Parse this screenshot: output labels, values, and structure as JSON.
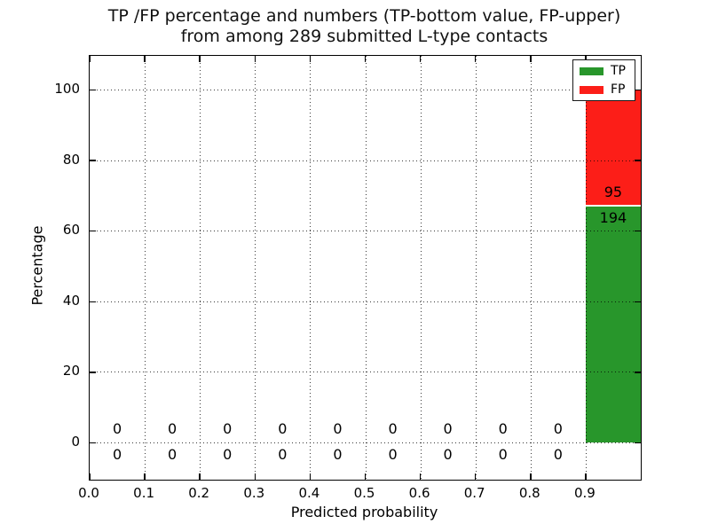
{
  "colors": {
    "tp_green": "#28962b",
    "fp_red": "#fc1e18",
    "grid": "#000000",
    "text": "#000000",
    "background": "#ffffff",
    "bar_separator": "#f2fff2"
  },
  "chart_data": {
    "type": "bar",
    "stacked": true,
    "title": "TP /FP percentage and numbers (TP-bottom value, FP-upper)\nfrom among 289 submitted L-type contacts",
    "title_line1": "TP /FP percentage and numbers (TP-bottom value, FP-upper)",
    "title_line2": "from among 289 submitted L-type contacts",
    "xlabel": "Predicted probability",
    "ylabel": "Percentage",
    "total_submitted": 289,
    "bin_width": 0.1,
    "bin_centers": [
      0.05,
      0.15,
      0.25,
      0.35,
      0.45,
      0.55,
      0.65,
      0.75,
      0.85,
      0.95
    ],
    "categories": [
      "0.0-0.1",
      "0.1-0.2",
      "0.2-0.3",
      "0.3-0.4",
      "0.4-0.5",
      "0.5-0.6",
      "0.6-0.7",
      "0.7-0.8",
      "0.8-0.9",
      "0.9-1.0"
    ],
    "series": [
      {
        "name": "TP",
        "color": "#28962b",
        "counts": [
          0,
          0,
          0,
          0,
          0,
          0,
          0,
          0,
          0,
          194
        ],
        "percent": [
          0,
          0,
          0,
          0,
          0,
          0,
          0,
          0,
          0,
          67.1
        ]
      },
      {
        "name": "FP",
        "color": "#fc1e18",
        "counts": [
          0,
          0,
          0,
          0,
          0,
          0,
          0,
          0,
          0,
          95
        ],
        "percent": [
          0,
          0,
          0,
          0,
          0,
          0,
          0,
          0,
          0,
          32.9
        ]
      }
    ],
    "annotation_note": "TP count shown below segment boundary, FP count shown above it",
    "xtick_labels": [
      "0.0",
      "0.1",
      "0.2",
      "0.3",
      "0.4",
      "0.5",
      "0.6",
      "0.7",
      "0.8",
      "0.9"
    ],
    "xtick_values": [
      0.0,
      0.1,
      0.2,
      0.3,
      0.4,
      0.5,
      0.6,
      0.7,
      0.8,
      0.9
    ],
    "ytick_labels": [
      "0",
      "20",
      "40",
      "60",
      "80",
      "100"
    ],
    "ytick_values": [
      0,
      20,
      40,
      60,
      80,
      100
    ],
    "xlim": [
      0.0,
      1.0
    ],
    "ylim": [
      -10.5,
      109.5
    ],
    "grid": "dotted",
    "legend": {
      "position": "upper right",
      "entries": [
        {
          "label": "TP",
          "color": "#28962b"
        },
        {
          "label": "FP",
          "color": "#fc1e18"
        }
      ]
    }
  }
}
